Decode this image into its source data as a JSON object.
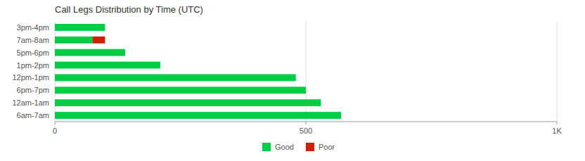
{
  "chart_data": {
    "type": "bar",
    "orientation": "horizontal",
    "stacked": true,
    "title": "Call Legs Distribution by Time (UTC)",
    "categories": [
      "6am-7am",
      "12am-1am",
      "6pm-7pm",
      "12pm-1pm",
      "1pm-2pm",
      "5pm-6pm",
      "7am-8am",
      "3pm-4pm"
    ],
    "series": [
      {
        "name": "Good",
        "color": "#00cc44",
        "values": [
          570,
          530,
          500,
          480,
          210,
          140,
          75,
          100
        ]
      },
      {
        "name": "Poor",
        "color": "#cc2200",
        "values": [
          0,
          0,
          0,
          0,
          0,
          0,
          25,
          0
        ]
      }
    ],
    "xlim": [
      0,
      1000
    ],
    "xticks": [
      0,
      500,
      {
        "value": 1000,
        "label": "1K"
      }
    ],
    "grid": true,
    "legend": "bottom"
  }
}
